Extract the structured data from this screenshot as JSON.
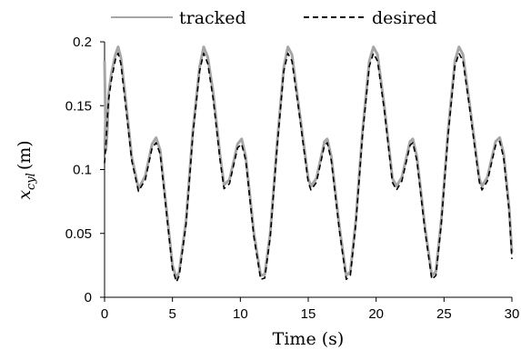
{
  "chart_data": {
    "type": "line",
    "xlabel": "Time (s)",
    "ylabel_main": "x",
    "ylabel_sub": "cyl",
    "ylabel_unit": "(m)",
    "xlim": [
      0,
      30
    ],
    "ylim": [
      0,
      0.2
    ],
    "x_ticks": [
      0,
      5,
      10,
      15,
      20,
      25,
      30
    ],
    "x_tick_labels": [
      "0",
      "5",
      "10",
      "15",
      "20",
      "25",
      "30"
    ],
    "y_ticks": [
      0,
      0.05,
      0.1,
      0.15,
      0.2
    ],
    "y_tick_labels": [
      "0",
      "0.05",
      "0.1",
      "0.15",
      "0.2"
    ],
    "grid": false,
    "legend_position": "top",
    "series": [
      {
        "name": "tracked",
        "color": "#a6a6a6",
        "dash": "solid",
        "x": [
          0,
          0.1,
          0.2,
          0.3,
          0.5,
          0.8,
          1.0,
          1.2,
          1.5,
          2.0,
          2.5,
          3.0,
          3.5,
          3.8,
          4.1,
          4.5,
          5.0,
          5.3,
          5.5,
          6.0,
          6.5,
          7.0,
          7.3,
          7.6,
          8.0,
          8.5,
          8.8,
          9.2,
          9.8,
          10.1,
          10.4,
          11.0,
          11.5,
          11.8,
          12.2,
          12.7,
          13.2,
          13.5,
          13.8,
          14.3,
          15.0,
          15.2,
          15.6,
          16.2,
          16.4,
          16.7,
          17.3,
          17.8,
          18.1,
          18.5,
          19.0,
          19.5,
          19.8,
          20.1,
          20.6,
          21.2,
          21.5,
          21.9,
          22.5,
          22.7,
          23.0,
          23.6,
          24.1,
          24.4,
          24.8,
          25.3,
          25.8,
          26.1,
          26.4,
          26.9,
          27.6,
          27.8,
          28.2,
          28.8,
          29.1,
          29.4,
          29.8,
          30.0
        ],
        "y": [
          0.185,
          0.115,
          0.13,
          0.16,
          0.175,
          0.19,
          0.196,
          0.188,
          0.16,
          0.11,
          0.085,
          0.095,
          0.12,
          0.125,
          0.115,
          0.075,
          0.025,
          0.015,
          0.02,
          0.06,
          0.13,
          0.18,
          0.196,
          0.188,
          0.16,
          0.112,
          0.088,
          0.092,
          0.12,
          0.124,
          0.11,
          0.05,
          0.017,
          0.018,
          0.05,
          0.12,
          0.18,
          0.196,
          0.19,
          0.15,
          0.093,
          0.087,
          0.093,
          0.122,
          0.124,
          0.11,
          0.055,
          0.017,
          0.02,
          0.06,
          0.13,
          0.185,
          0.196,
          0.19,
          0.15,
          0.093,
          0.087,
          0.094,
          0.122,
          0.124,
          0.11,
          0.055,
          0.017,
          0.02,
          0.06,
          0.13,
          0.185,
          0.196,
          0.19,
          0.15,
          0.093,
          0.087,
          0.094,
          0.122,
          0.125,
          0.112,
          0.07,
          0.035
        ]
      },
      {
        "name": "desired",
        "color": "#000000",
        "dash": "dashed",
        "x": [
          0,
          0.1,
          0.2,
          0.3,
          0.5,
          0.8,
          1.0,
          1.2,
          1.5,
          2.0,
          2.5,
          3.0,
          3.5,
          3.8,
          4.1,
          4.5,
          5.0,
          5.3,
          5.5,
          6.0,
          6.5,
          7.0,
          7.3,
          7.6,
          8.0,
          8.5,
          8.8,
          9.2,
          9.8,
          10.1,
          10.4,
          11.0,
          11.5,
          11.8,
          12.2,
          12.7,
          13.2,
          13.5,
          13.8,
          14.3,
          15.0,
          15.2,
          15.6,
          16.2,
          16.4,
          16.7,
          17.3,
          17.8,
          18.1,
          18.5,
          19.0,
          19.5,
          19.8,
          20.1,
          20.6,
          21.2,
          21.5,
          21.9,
          22.5,
          22.7,
          23.0,
          23.6,
          24.1,
          24.4,
          24.8,
          25.3,
          25.8,
          26.1,
          26.4,
          26.9,
          27.6,
          27.8,
          28.2,
          28.8,
          29.1,
          29.4,
          29.8,
          30.0
        ],
        "y": [
          0.105,
          0.12,
          0.14,
          0.155,
          0.17,
          0.186,
          0.191,
          0.183,
          0.155,
          0.107,
          0.083,
          0.092,
          0.117,
          0.121,
          0.112,
          0.072,
          0.022,
          0.012,
          0.017,
          0.057,
          0.127,
          0.177,
          0.191,
          0.183,
          0.155,
          0.108,
          0.085,
          0.089,
          0.117,
          0.12,
          0.107,
          0.047,
          0.014,
          0.015,
          0.047,
          0.117,
          0.177,
          0.191,
          0.185,
          0.147,
          0.09,
          0.084,
          0.09,
          0.119,
          0.121,
          0.107,
          0.052,
          0.014,
          0.017,
          0.057,
          0.127,
          0.181,
          0.191,
          0.185,
          0.147,
          0.09,
          0.084,
          0.091,
          0.119,
          0.121,
          0.107,
          0.052,
          0.014,
          0.017,
          0.057,
          0.127,
          0.181,
          0.191,
          0.185,
          0.147,
          0.09,
          0.084,
          0.091,
          0.119,
          0.122,
          0.109,
          0.067,
          0.03
        ]
      }
    ]
  }
}
